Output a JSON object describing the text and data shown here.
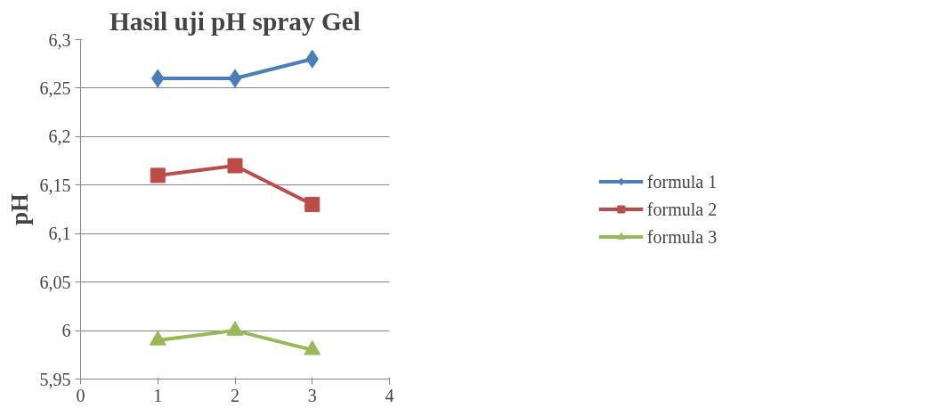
{
  "chart_data": {
    "type": "line",
    "title": "Hasil uji pH spray Gel",
    "ylabel": "pH",
    "x": [
      1,
      2,
      3
    ],
    "series": [
      {
        "name": "formula 1",
        "color": "#4a7ebb",
        "values": [
          6.26,
          6.26,
          6.28
        ],
        "marker": "diamond"
      },
      {
        "name": "formula 2",
        "color": "#be4b48",
        "values": [
          6.16,
          6.17,
          6.13
        ],
        "marker": "square"
      },
      {
        "name": "formula 3",
        "color": "#98b954",
        "values": [
          5.99,
          6.0,
          5.98
        ],
        "marker": "triangle"
      }
    ],
    "xlim": [
      0,
      4
    ],
    "xticks": [
      0,
      1,
      2,
      3,
      4
    ],
    "ylim": [
      5.95,
      6.3
    ],
    "yticks": [
      {
        "value": 5.95,
        "label": "5,95"
      },
      {
        "value": 6,
        "label": "6"
      },
      {
        "value": 6.05,
        "label": "6,05"
      },
      {
        "value": 6.1,
        "label": "6,1"
      },
      {
        "value": 6.15,
        "label": "6,15"
      },
      {
        "value": 6.2,
        "label": "6,2"
      },
      {
        "value": 6.25,
        "label": "6,25"
      },
      {
        "value": 6.3,
        "label": "6,3"
      }
    ],
    "grid": "y",
    "legend": "right",
    "line_style": "solid"
  }
}
